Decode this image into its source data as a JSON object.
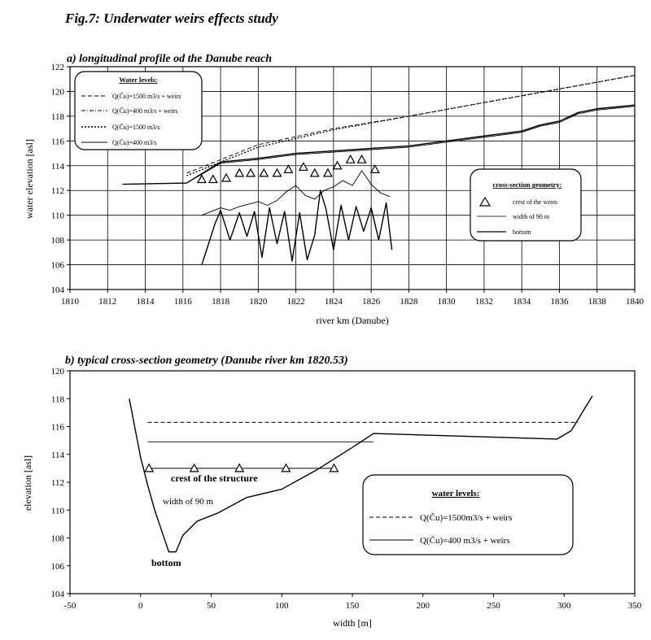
{
  "figure": {
    "title": "Fig.7: Underwater weirs effects study"
  },
  "chart_data": [
    {
      "type": "line",
      "title": "a) longitudinal profile od the Danube reach",
      "xlabel": "river km (Danube)",
      "ylabel": "water elevation [asl]",
      "xlim": [
        1810,
        1840
      ],
      "ylim": [
        104,
        122
      ],
      "xticks": [
        1810,
        1812,
        1814,
        1816,
        1818,
        1820,
        1822,
        1824,
        1826,
        1828,
        1830,
        1832,
        1834,
        1836,
        1838,
        1840
      ],
      "yticks": [
        104,
        106,
        108,
        110,
        112,
        114,
        116,
        118,
        120,
        122
      ],
      "grid": true,
      "legend_water": {
        "title": "Water levels:",
        "placement": "top-left",
        "entries": [
          "Q(Ču)=1500 m3/s + weirs",
          "Q(Ču)=400 m3/s + weirs",
          "Q(Ču)=1500 m3/s",
          "Q(Ču)=400 m3/s"
        ]
      },
      "legend_geometry": {
        "title": "cross-section geometry:",
        "placement": "center-right",
        "entries": [
          "crest of the weirs",
          "width of 90 m",
          "bottom"
        ]
      },
      "series": [
        {
          "name": "Q(Ču)=1500 m3/s + weirs",
          "style": "dashed",
          "x": [
            1816.2,
            1820,
            1824,
            1828,
            1832,
            1836,
            1840
          ],
          "y": [
            113.4,
            115.7,
            117.0,
            118.0,
            119.1,
            120.2,
            121.3
          ]
        },
        {
          "name": "Q(Ču)=400 m3/s + weirs",
          "style": "solid",
          "x": [
            1812.8,
            1816.2,
            1818,
            1820,
            1822,
            1824,
            1826,
            1828,
            1830,
            1832,
            1834,
            1835,
            1836,
            1837,
            1838,
            1840
          ],
          "y": [
            112.5,
            112.6,
            114.3,
            114.6,
            115.0,
            115.2,
            115.4,
            115.6,
            116.0,
            116.4,
            116.8,
            117.3,
            117.6,
            118.3,
            118.6,
            118.9
          ]
        },
        {
          "name": "Q(Ču)=1500 m3/s",
          "style": "dotted",
          "x": [
            1816.2,
            1820,
            1824,
            1828,
            1832,
            1836,
            1840
          ],
          "y": [
            113.2,
            115.5,
            116.9,
            118.0,
            119.1,
            120.2,
            121.3
          ]
        },
        {
          "name": "Q(Ču)=400 m3/s",
          "style": "solid-thin",
          "x": [
            1812.8,
            1816.2,
            1818,
            1820,
            1822,
            1824,
            1826,
            1828,
            1830,
            1832,
            1834,
            1835,
            1836,
            1837,
            1838,
            1840
          ],
          "y": [
            112.5,
            112.6,
            114.2,
            114.5,
            114.9,
            115.1,
            115.3,
            115.5,
            115.9,
            116.3,
            116.7,
            117.2,
            117.5,
            118.2,
            118.5,
            118.8
          ]
        },
        {
          "name": "crest of the weirs",
          "style": "triangle",
          "x": [
            1817.0,
            1817.6,
            1818.3,
            1819.0,
            1819.6,
            1820.3,
            1821.0,
            1821.6,
            1822.4,
            1823.0,
            1823.7,
            1824.2,
            1824.9,
            1825.5,
            1826.2
          ],
          "y": [
            112.9,
            112.9,
            113.0,
            113.4,
            113.4,
            113.4,
            113.4,
            113.7,
            113.9,
            113.4,
            113.4,
            114.0,
            114.5,
            114.5,
            113.7
          ]
        },
        {
          "name": "width of 90 m",
          "style": "solid-thin",
          "x": [
            1817.0,
            1817.5,
            1818.0,
            1818.5,
            1819.0,
            1819.5,
            1820.0,
            1820.5,
            1821.0,
            1821.5,
            1822.0,
            1822.5,
            1823.0,
            1823.5,
            1824.0,
            1824.5,
            1825.0,
            1825.5,
            1826.0,
            1826.5,
            1827.0
          ],
          "y": [
            110.0,
            110.3,
            110.6,
            110.4,
            110.7,
            110.9,
            111.1,
            110.8,
            111.2,
            111.9,
            112.4,
            111.6,
            111.3,
            112.0,
            112.3,
            112.8,
            112.4,
            113.6,
            112.5,
            111.8,
            111.5
          ]
        },
        {
          "name": "bottom",
          "style": "solid",
          "x": [
            1817.0,
            1817.3,
            1817.7,
            1818.0,
            1818.5,
            1819.0,
            1819.4,
            1819.8,
            1820.2,
            1820.6,
            1821.0,
            1821.4,
            1821.8,
            1822.2,
            1822.6,
            1823.0,
            1823.3,
            1823.6,
            1824.0,
            1824.4,
            1824.8,
            1825.2,
            1825.6,
            1826.0,
            1826.4,
            1826.8,
            1827.1
          ],
          "y": [
            106.0,
            107.4,
            109.3,
            110.4,
            108.0,
            110.2,
            108.3,
            110.3,
            106.6,
            110.6,
            107.7,
            110.3,
            106.3,
            110.2,
            106.4,
            108.4,
            112.0,
            110.5,
            107.2,
            110.8,
            108.0,
            110.7,
            108.7,
            110.6,
            108.0,
            111.0,
            107.2
          ]
        }
      ]
    },
    {
      "type": "line",
      "title": "b) typical cross-section geometry (Danube river km 1820.53)",
      "xlabel": "width [m]",
      "ylabel": "elevation [asl]",
      "xlim": [
        -50,
        350
      ],
      "ylim": [
        104,
        120
      ],
      "xticks": [
        -50,
        0,
        50,
        100,
        150,
        200,
        250,
        300,
        350
      ],
      "yticks": [
        104,
        106,
        108,
        110,
        112,
        114,
        116,
        118,
        120
      ],
      "grid": false,
      "legend_water": {
        "title": "water levels:",
        "placement": "bottom-right",
        "entries": [
          "Q(Ču)=1500m3/s + weirs",
          "Q(Ču)=400 m3/s + weirs"
        ]
      },
      "annotations": [
        "crest of the structure",
        "width of 90 m",
        "bottom"
      ],
      "series": [
        {
          "name": "Q(Ču)=1500m3/s + weirs",
          "style": "dashed",
          "x": [
            5,
            310
          ],
          "y": [
            116.3,
            116.3
          ]
        },
        {
          "name": "Q(Ču)=400 m3/s + weirs",
          "style": "solid-thin",
          "x": [
            5,
            165
          ],
          "y": [
            114.9,
            114.9
          ]
        },
        {
          "name": "crest of the structure",
          "style": "triangle-line",
          "x": [
            6,
            38,
            70,
            103,
            137
          ],
          "y": [
            113.0,
            113.0,
            113.0,
            113.0,
            113.0
          ]
        },
        {
          "name": "bottom",
          "style": "solid",
          "x": [
            -8,
            0,
            5,
            10,
            15,
            20,
            25,
            30,
            40,
            55,
            75,
            100,
            125,
            150,
            165,
            295,
            305,
            320
          ],
          "y": [
            118.0,
            113.8,
            111.8,
            110.0,
            108.5,
            107.0,
            107.0,
            108.2,
            109.2,
            109.8,
            110.9,
            111.5,
            112.9,
            114.5,
            115.5,
            115.1,
            115.7,
            118.2
          ]
        }
      ]
    }
  ]
}
